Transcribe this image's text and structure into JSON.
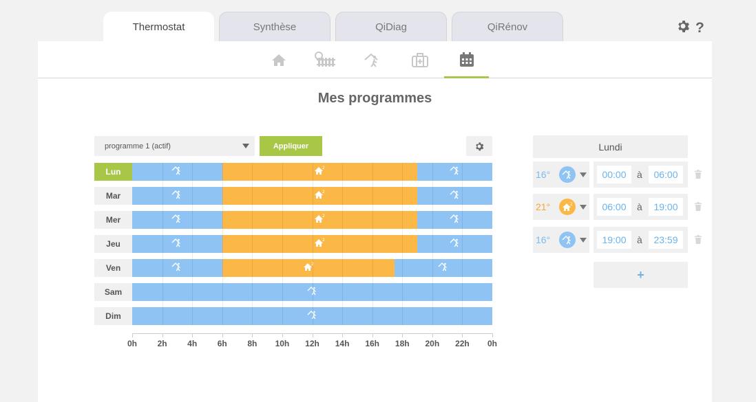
{
  "tabs": [
    {
      "label": "Thermostat",
      "active": true
    },
    {
      "label": "Synthèse",
      "active": false
    },
    {
      "label": "QiDiag",
      "active": false
    },
    {
      "label": "QiRénov",
      "active": false
    }
  ],
  "header_icons": [
    "gear-icon",
    "help-icon"
  ],
  "help_label": "?",
  "subnav": [
    "home-icon",
    "radiator-icon",
    "away-icon",
    "suitcase-icon",
    "calendar-icon"
  ],
  "subnav_active": "calendar-icon",
  "page_title": "Mes programmes",
  "program": {
    "selected": "programme 1 (actif)",
    "apply_label": "Appliquer"
  },
  "colors": {
    "eco": "#8ec3f3",
    "comfort": "#fbb847",
    "accent": "#a9c747",
    "time_text": "#6ab3ee"
  },
  "axis_ticks": [
    "0h",
    "2h",
    "4h",
    "6h",
    "8h",
    "10h",
    "12h",
    "14h",
    "16h",
    "18h",
    "20h",
    "22h",
    "0h"
  ],
  "chart_data": {
    "type": "table",
    "unit": "hours",
    "days": [
      {
        "label": "Lun",
        "active": true,
        "segments": [
          {
            "start": 0,
            "end": 6,
            "mode": "eco"
          },
          {
            "start": 6,
            "end": 19,
            "mode": "comfort"
          },
          {
            "start": 19,
            "end": 24,
            "mode": "eco"
          }
        ]
      },
      {
        "label": "Mar",
        "active": false,
        "segments": [
          {
            "start": 0,
            "end": 6,
            "mode": "eco"
          },
          {
            "start": 6,
            "end": 19,
            "mode": "comfort"
          },
          {
            "start": 19,
            "end": 24,
            "mode": "eco"
          }
        ]
      },
      {
        "label": "Mer",
        "active": false,
        "segments": [
          {
            "start": 0,
            "end": 6,
            "mode": "eco"
          },
          {
            "start": 6,
            "end": 19,
            "mode": "comfort"
          },
          {
            "start": 19,
            "end": 24,
            "mode": "eco"
          }
        ]
      },
      {
        "label": "Jeu",
        "active": false,
        "segments": [
          {
            "start": 0,
            "end": 6,
            "mode": "eco"
          },
          {
            "start": 6,
            "end": 19,
            "mode": "comfort"
          },
          {
            "start": 19,
            "end": 24,
            "mode": "eco"
          }
        ]
      },
      {
        "label": "Ven",
        "active": false,
        "segments": [
          {
            "start": 0,
            "end": 6,
            "mode": "eco"
          },
          {
            "start": 6,
            "end": 17.5,
            "mode": "comfort"
          },
          {
            "start": 17.5,
            "end": 24,
            "mode": "eco"
          }
        ]
      },
      {
        "label": "Sam",
        "active": false,
        "segments": [
          {
            "start": 0,
            "end": 24,
            "mode": "eco"
          }
        ]
      },
      {
        "label": "Dim",
        "active": false,
        "segments": [
          {
            "start": 0,
            "end": 24,
            "mode": "eco"
          }
        ]
      }
    ]
  },
  "schedule": {
    "day": "Lundi",
    "rows": [
      {
        "temp": "16°",
        "mode": "eco",
        "from": "00:00",
        "to": "06:00"
      },
      {
        "temp": "21°",
        "mode": "comfort",
        "from": "06:00",
        "to": "19:00"
      },
      {
        "temp": "16°",
        "mode": "eco",
        "from": "19:00",
        "to": "23:59"
      }
    ],
    "sep": "à",
    "add_label": "+"
  }
}
